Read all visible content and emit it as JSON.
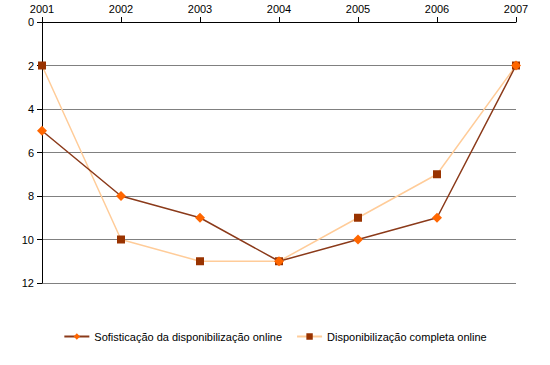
{
  "chart_data": {
    "type": "line",
    "categories": [
      "2001",
      "2002",
      "2003",
      "2004",
      "2005",
      "2006",
      "2007"
    ],
    "series": [
      {
        "name": "Sofisticação da disponibilização online",
        "color": "#ff6600",
        "marker": "diamond",
        "values": [
          5,
          8,
          9,
          11,
          10,
          9,
          2
        ]
      },
      {
        "name": "Disponibilização completa online",
        "color": "#993300",
        "marker": "square",
        "values": [
          2,
          10,
          11,
          11,
          9,
          7,
          2
        ]
      }
    ],
    "ylim": [
      0,
      12
    ],
    "yticks": [
      0,
      2,
      4,
      6,
      8,
      10,
      12
    ],
    "grid": true,
    "legend": "bottom"
  }
}
